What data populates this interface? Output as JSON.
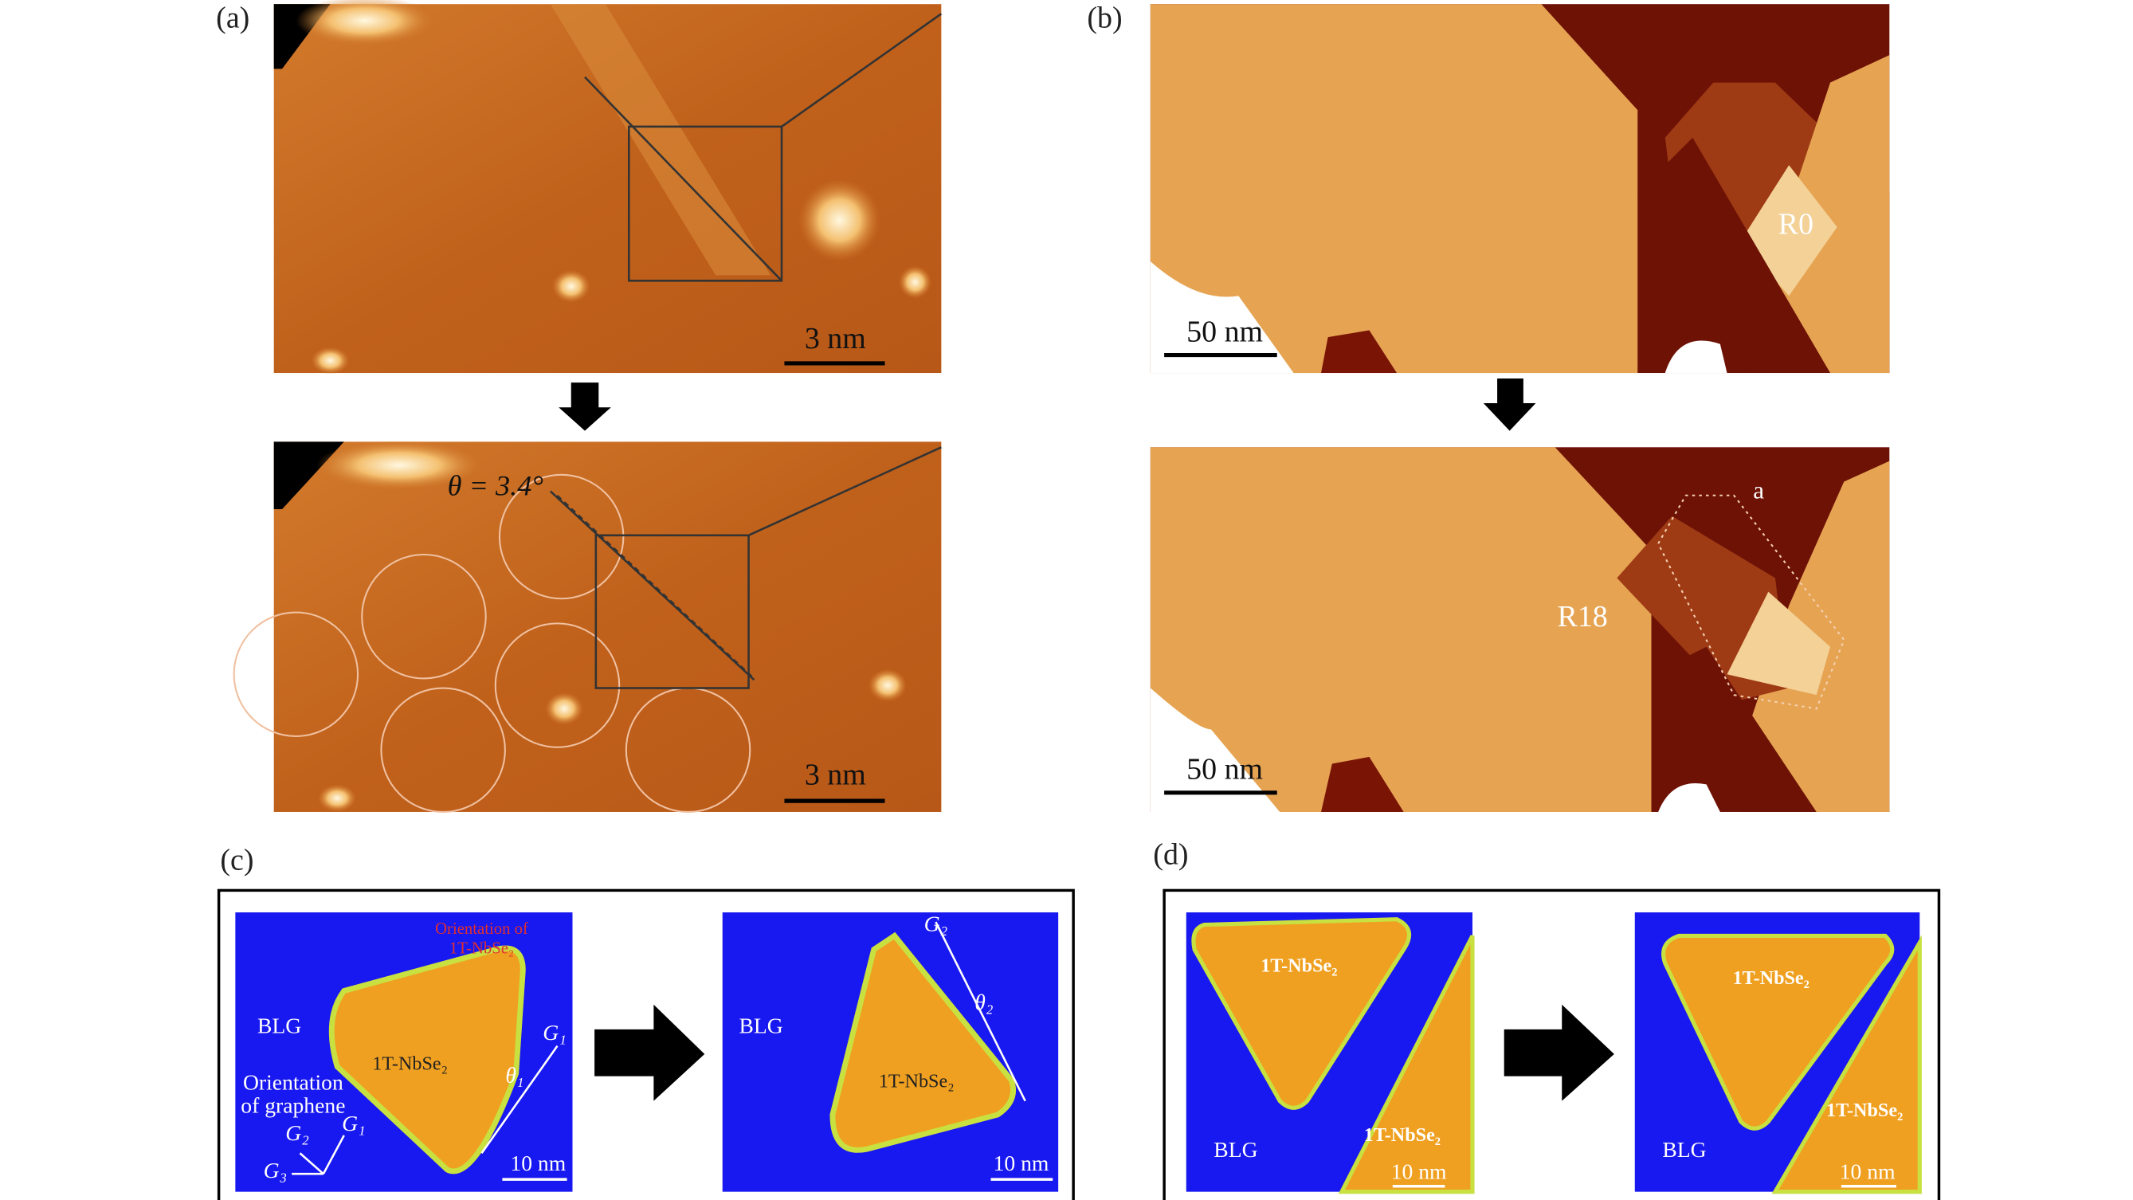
{
  "panel_a": {
    "label": "(a)",
    "top_scale": "3 nm",
    "bottom_scale": "3 nm",
    "angle": "θ = 3.4°"
  },
  "panel_b": {
    "label": "(b)",
    "top_scale": "50 nm",
    "bottom_scale": "50 nm",
    "top_region": "R0",
    "bottom_region": "R18",
    "marker": "a"
  },
  "panel_c": {
    "label": "(c)",
    "left": {
      "substrate": "BLG",
      "island": "1T-NbSe₂",
      "scale": "10 nm",
      "island_orientation": [
        "Orientation of",
        "1T-NbSe₂"
      ],
      "graphene_orientation": [
        "Orientation",
        "of graphene"
      ],
      "axes": [
        "G₁",
        "G₂",
        "G₃"
      ],
      "vector": "G₁",
      "angle": "θ₁"
    },
    "right": {
      "substrate": "BLG",
      "island": "1T-NbSe₂",
      "scale": "10 nm",
      "vector": "G₂",
      "angle": "θ₂"
    }
  },
  "panel_d": {
    "label": "(d)",
    "left": {
      "island_top": "1T-NbSe₂",
      "island_bottom": "1T-NbSe₂",
      "substrate": "BLG",
      "scale": "10 nm"
    },
    "right": {
      "island_top": "1T-NbSe₂",
      "island_bottom": "1T-NbSe₂",
      "substrate": "BLG",
      "scale": "10 nm"
    }
  }
}
